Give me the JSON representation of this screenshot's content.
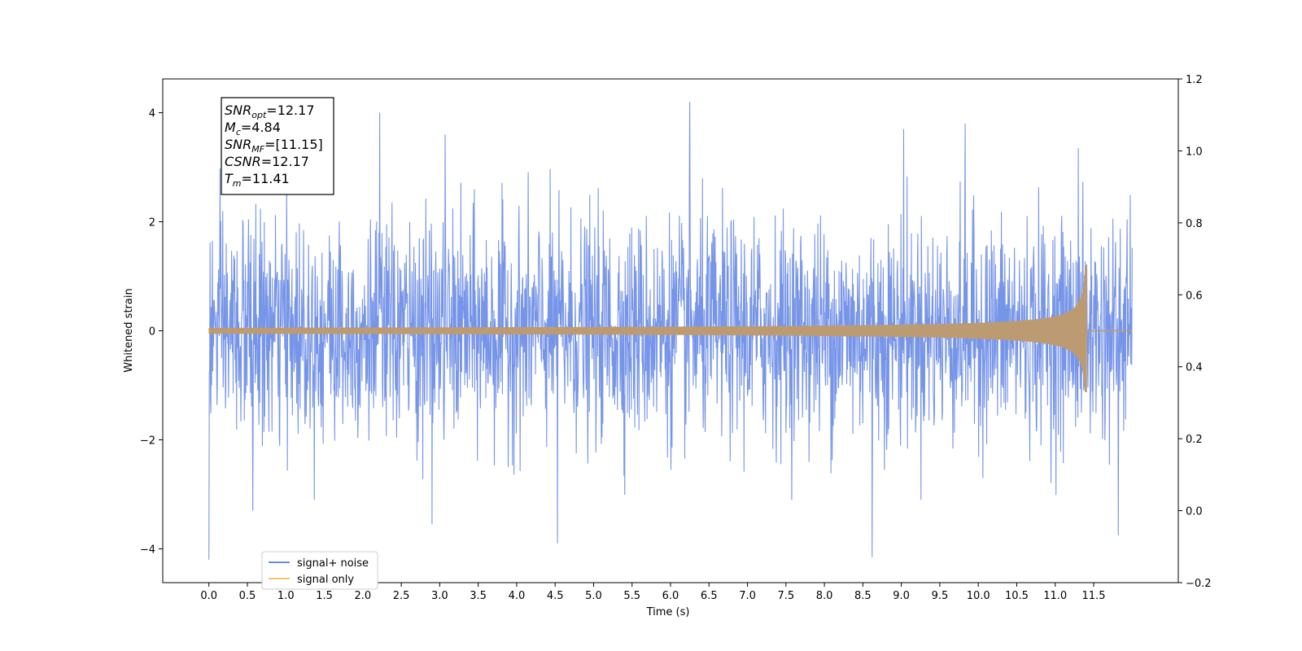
{
  "chart_data": {
    "type": "line",
    "title": "",
    "xlabel": "Time (s)",
    "ylabel": "Whitened strain",
    "xlim": [
      -0.6,
      12.6
    ],
    "ylim": [
      -4.62,
      4.62
    ],
    "y2lim": [
      -0.2,
      1.2
    ],
    "grid": false,
    "legend_position": "lower-left",
    "x_ticks": [
      "0.0",
      "0.5",
      "1.0",
      "1.5",
      "2.0",
      "2.5",
      "3.0",
      "3.5",
      "4.0",
      "4.5",
      "5.0",
      "5.5",
      "6.0",
      "6.5",
      "7.0",
      "7.5",
      "8.0",
      "8.5",
      "9.0",
      "9.5",
      "10.0",
      "10.5",
      "11.0",
      "11.5"
    ],
    "y_ticks": [
      "−4",
      "−2",
      "0",
      "2",
      "4"
    ],
    "y2_ticks": [
      "−0.2",
      "0.0",
      "0.2",
      "0.4",
      "0.6",
      "0.8",
      "1.0",
      "1.2"
    ],
    "annotation": [
      {
        "base": "SNR",
        "sub": "opt",
        "value": "=12.17"
      },
      {
        "base": "M",
        "sub": "c",
        "value": "=4.84"
      },
      {
        "base": "SNR",
        "sub": "MF",
        "value": "=[11.15]"
      },
      {
        "base": "CSNR",
        "sub": "",
        "value": "=12.17"
      },
      {
        "base": "T",
        "sub": "m",
        "value": "=11.41"
      }
    ],
    "series": [
      {
        "name": "signal+ noise",
        "color": "#6b8ce6",
        "t_start": 0.0,
        "t_end": 12.0,
        "noise_sigma": 1.0,
        "peak_events": [
          {
            "t": 0.0,
            "y": -4.2
          },
          {
            "t": 0.57,
            "y": -3.3
          },
          {
            "t": 2.22,
            "y": 4.0
          },
          {
            "t": 2.9,
            "y": -3.55
          },
          {
            "t": 3.07,
            "y": 3.6
          },
          {
            "t": 4.53,
            "y": -3.9
          },
          {
            "t": 6.25,
            "y": 4.2
          },
          {
            "t": 8.62,
            "y": -4.15
          },
          {
            "t": 9.03,
            "y": 3.7
          },
          {
            "t": 9.83,
            "y": 3.8
          },
          {
            "t": 11.3,
            "y": 3.35
          },
          {
            "t": 11.82,
            "y": -3.75
          }
        ]
      },
      {
        "name": "signal only",
        "color": "#f6c46a",
        "t_start": 0.0,
        "t_end": 11.41,
        "t_merger": 11.41,
        "start_amplitude": 0.05,
        "peak_amplitude": 1.2,
        "trough_amplitude": -1.12
      }
    ]
  }
}
